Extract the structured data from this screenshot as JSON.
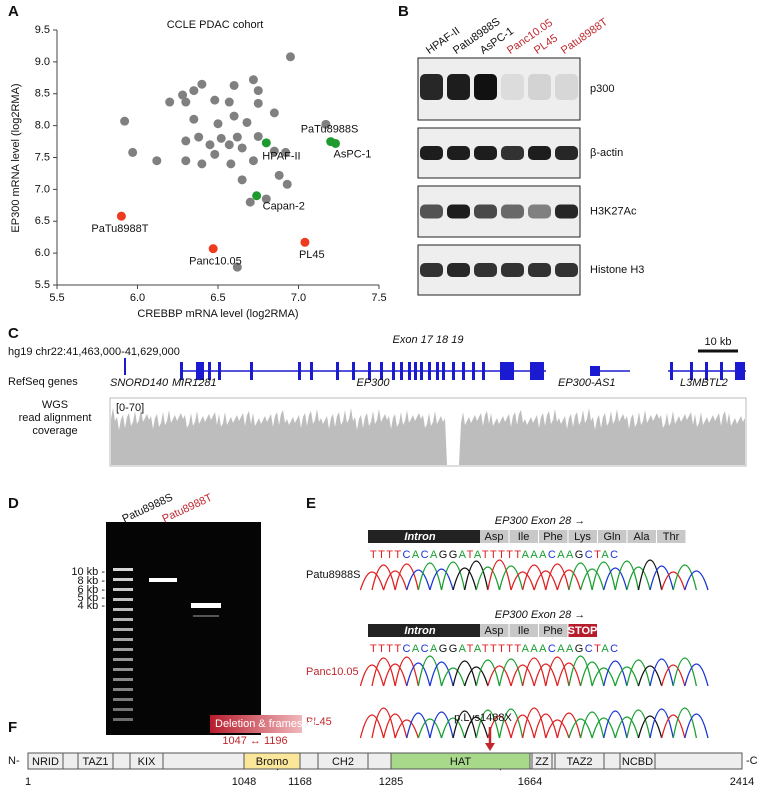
{
  "panels": {
    "a": "A",
    "b": "B",
    "c": "C",
    "d": "D",
    "e": "E",
    "f": "F"
  },
  "chart_data": {
    "type": "scatter",
    "title": "CCLE PDAC cohort",
    "x_label": "CREBBP mRNA level (log2RMA)",
    "y_label": "EP300 mRNA level (log2RMA)",
    "xlim": [
      5.5,
      7.5
    ],
    "xticks": [
      5.5,
      {
        "value": 6,
        "label": "6.0"
      },
      6.5,
      {
        "value": 7,
        "label": "7.0"
      },
      7.5
    ],
    "ylim": [
      5.5,
      9.5
    ],
    "yticks": [
      5.5,
      {
        "value": 6,
        "label": "6.0"
      },
      6.5,
      {
        "value": 7,
        "label": "7.0"
      },
      7.5,
      {
        "value": 8,
        "label": "8.0"
      },
      8.5,
      {
        "value": 9,
        "label": "9.0"
      },
      9.5
    ],
    "series": [
      {
        "color": "#808080",
        "x": [
          6.95,
          6.72,
          6.6,
          6.4,
          6.35,
          6.28,
          6.2,
          6.3,
          6.75,
          6.57,
          6.48,
          6.75,
          6.85,
          6.6,
          6.35,
          6.5,
          6.68,
          7.17,
          6.38,
          6.52,
          6.62,
          6.75,
          6.3,
          6.45,
          6.57,
          6.65,
          6.85,
          6.92,
          6.48,
          6.72,
          6.58,
          6.3,
          6.4,
          6.65,
          6.88,
          6.93,
          6.7,
          6.8,
          6.62,
          5.92,
          5.97,
          6.12
        ],
        "values": [
          9.08,
          8.72,
          8.63,
          8.65,
          8.55,
          8.48,
          8.37,
          8.37,
          8.55,
          8.37,
          8.4,
          8.35,
          8.2,
          8.15,
          8.1,
          8.03,
          8.05,
          8.02,
          7.82,
          7.8,
          7.82,
          7.83,
          7.76,
          7.7,
          7.7,
          7.65,
          7.6,
          7.58,
          7.55,
          7.45,
          7.4,
          7.45,
          7.4,
          7.15,
          7.22,
          7.08,
          6.8,
          6.85,
          5.78,
          8.07,
          7.58,
          7.45
        ]
      },
      {
        "color": "#1e9a2e",
        "x": [
          6.8,
          7.2,
          7.23,
          6.74
        ],
        "values": [
          7.73,
          7.75,
          7.72,
          6.9
        ],
        "labels": [
          "HPAF-II",
          "PaTu8988S",
          "AsPC-1",
          "Capan-2"
        ]
      },
      {
        "color": "#ee3a1e",
        "x": [
          5.9,
          6.47,
          7.04
        ],
        "values": [
          6.58,
          6.07,
          6.17
        ],
        "labels": [
          "PaTu8988T",
          "Panc10.05",
          "PL45"
        ]
      }
    ]
  },
  "blot": {
    "lanes": [
      "HPAF-II",
      "Patu8988S",
      "AsPC-1",
      "Panc10.05",
      "PL45",
      "Patu8988T"
    ],
    "rows": [
      "p300",
      "β-actin",
      "H3K27Ac",
      "Histone H3"
    ]
  },
  "genome": {
    "locus": "hg19 chr22:41,463,000-41,629,000",
    "scale": "10 kb",
    "exon_label": "Exon 17   18  19",
    "refseq": "RefSeq genes",
    "genes": [
      "SNORD140",
      "MIR1281",
      "EP300",
      "EP300-AS1",
      "L3MBTL2"
    ],
    "wgs": [
      "WGS",
      "read alignment",
      "coverage"
    ],
    "range": "[0-70]"
  },
  "gel": {
    "lanes": [
      "Patu8988S",
      "Patu8988T"
    ],
    "ladder": [
      "10 kb -",
      "8 kb -",
      "6 kb -",
      "5 kb -",
      "4 kb -"
    ]
  },
  "sequencing": {
    "exon": "EP300 Exon 28 →",
    "intron": "Intron",
    "codons": [
      [
        "Asp",
        "Ile",
        "Phe",
        "Lys",
        "Gln",
        "Ala",
        "Thr"
      ],
      [
        "Asp",
        "Ile",
        "Phe",
        "STOP"
      ]
    ],
    "sequence": "TTTTCACAGGATATTTTTAAACAAGCTAC",
    "samples": [
      "Patu8988S",
      "Panc10.05",
      "PL45"
    ]
  },
  "protein": {
    "n": "N-",
    "c": "-C",
    "deletion": "Deletion & frameshift",
    "deletion_range": "1047  ↔  1196",
    "mutation": "p.Lys1488X",
    "domains": [
      "NRID",
      "TAZ1",
      "KIX",
      "Bromo",
      "CH2",
      "HAT",
      "ZZ",
      "TAZ2",
      "NCBD"
    ],
    "positions": [
      "1",
      "1048",
      "1168",
      "1285",
      "1664",
      "2414"
    ]
  }
}
